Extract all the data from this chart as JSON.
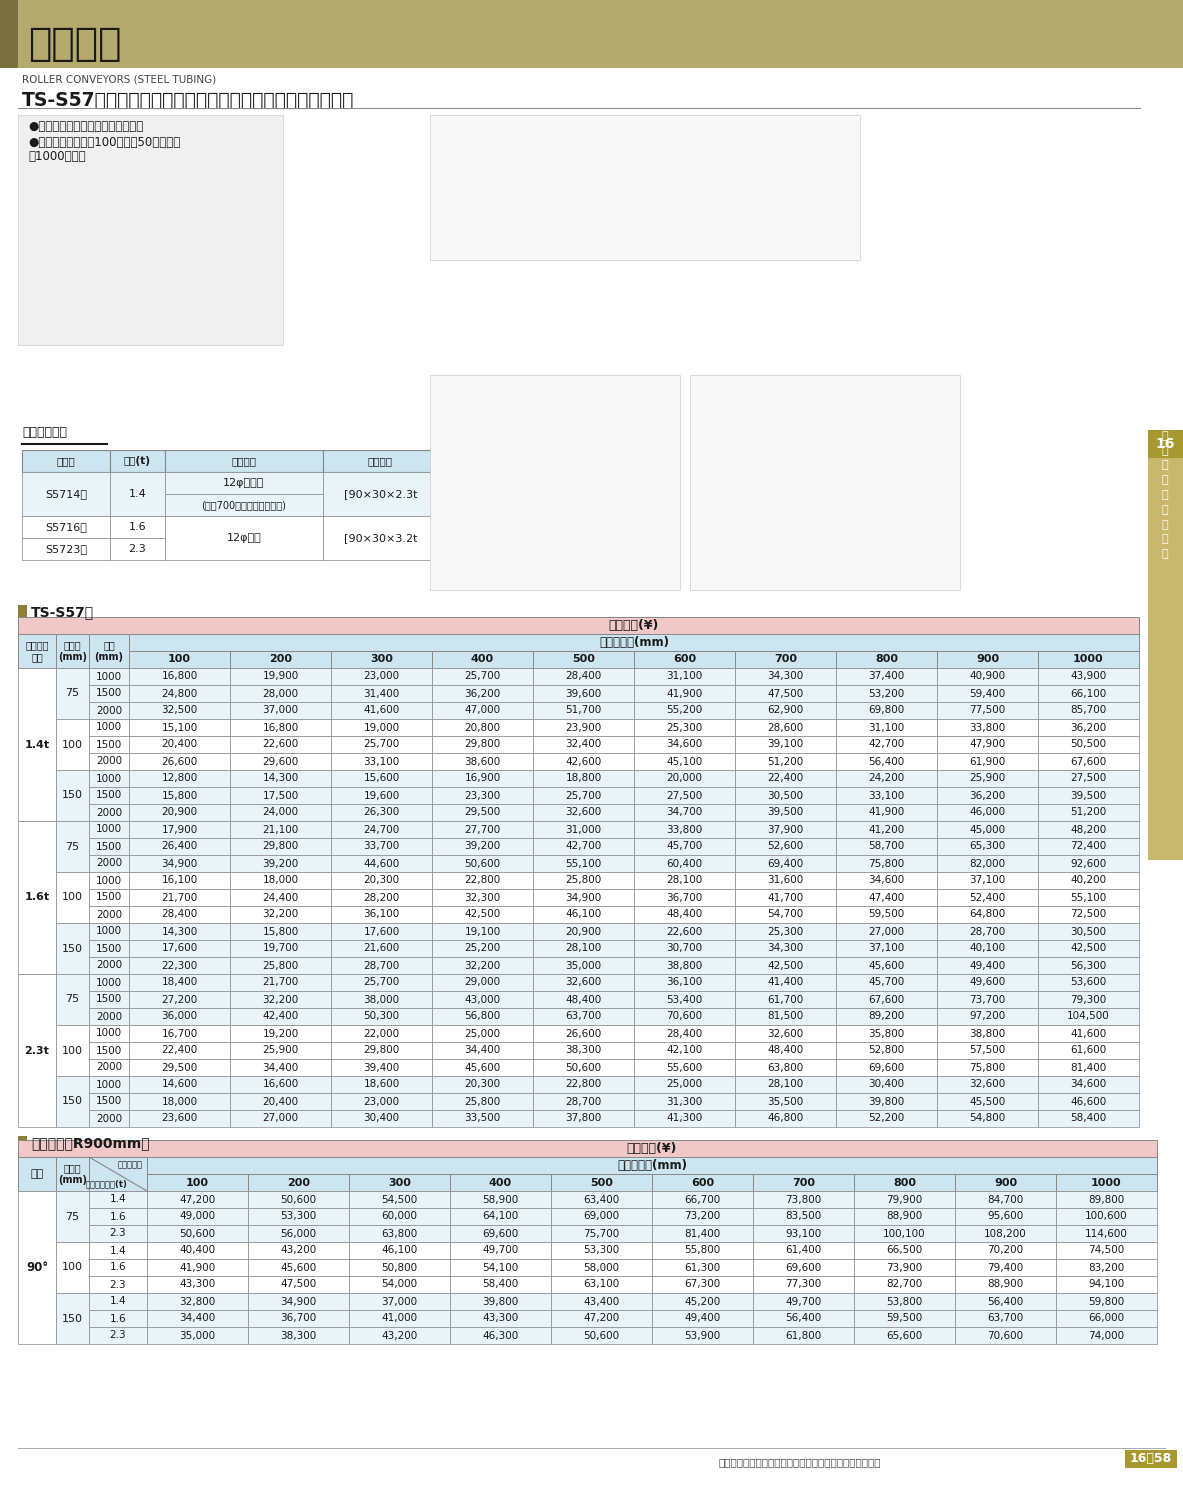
{
  "page_title": "コンベヤ",
  "page_subtitle_en": "ROLLER CONVEYORS (STEEL TUBING)",
  "page_subtitle_jp": "TS-S57型ローラーコンベヤ（スチール製）［寺内製作所］",
  "bullet_points": [
    "●汎用性に富んだ標準タイプです。",
    "●標準ローラー巾は100㎜から50㎜とびに",
    "　1000㎜まで"
  ],
  "roller_thickness_title": "ローラー肉厚",
  "roller_thickness_headers": [
    "型　番",
    "肉厚(t)",
    "シャフト",
    "フレーム"
  ],
  "ts_s57_title": "TS-S57型",
  "ts_s57_header_merged": "ローラー巾\n(mm)",
  "ts_s57_header_price": "標準価格(¥)",
  "price_cols": [
    "100",
    "200",
    "300",
    "400",
    "500",
    "600",
    "700",
    "800",
    "900",
    "1000"
  ],
  "ts_s57_data": [
    [
      "1.4t",
      "75",
      "1000",
      "16,800",
      "19,900",
      "23,000",
      "25,700",
      "28,400",
      "31,100",
      "34,300",
      "37,400",
      "40,900",
      "43,900"
    ],
    [
      "",
      "",
      "1500",
      "24,800",
      "28,000",
      "31,400",
      "36,200",
      "39,600",
      "41,900",
      "47,500",
      "53,200",
      "59,400",
      "66,100"
    ],
    [
      "",
      "",
      "2000",
      "32,500",
      "37,000",
      "41,600",
      "47,000",
      "51,700",
      "55,200",
      "62,900",
      "69,800",
      "77,500",
      "85,700"
    ],
    [
      "",
      "100",
      "1000",
      "15,100",
      "16,800",
      "19,000",
      "20,800",
      "23,900",
      "25,300",
      "28,600",
      "31,100",
      "33,800",
      "36,200"
    ],
    [
      "",
      "",
      "1500",
      "20,400",
      "22,600",
      "25,700",
      "29,800",
      "32,400",
      "34,600",
      "39,100",
      "42,700",
      "47,900",
      "50,500"
    ],
    [
      "",
      "",
      "2000",
      "26,600",
      "29,600",
      "33,100",
      "38,600",
      "42,600",
      "45,100",
      "51,200",
      "56,400",
      "61,900",
      "67,600"
    ],
    [
      "",
      "150",
      "1000",
      "12,800",
      "14,300",
      "15,600",
      "16,900",
      "18,800",
      "20,000",
      "22,400",
      "24,200",
      "25,900",
      "27,500"
    ],
    [
      "",
      "",
      "1500",
      "15,800",
      "17,500",
      "19,600",
      "23,300",
      "25,700",
      "27,500",
      "30,500",
      "33,100",
      "36,200",
      "39,500"
    ],
    [
      "",
      "",
      "2000",
      "20,900",
      "24,000",
      "26,300",
      "29,500",
      "32,600",
      "34,700",
      "39,500",
      "41,900",
      "46,000",
      "51,200"
    ],
    [
      "1.6t",
      "75",
      "1000",
      "17,900",
      "21,100",
      "24,700",
      "27,700",
      "31,000",
      "33,800",
      "37,900",
      "41,200",
      "45,000",
      "48,200"
    ],
    [
      "",
      "",
      "1500",
      "26,400",
      "29,800",
      "33,700",
      "39,200",
      "42,700",
      "45,700",
      "52,600",
      "58,700",
      "65,300",
      "72,400"
    ],
    [
      "",
      "",
      "2000",
      "34,900",
      "39,200",
      "44,600",
      "50,600",
      "55,100",
      "60,400",
      "69,400",
      "75,800",
      "82,000",
      "92,600"
    ],
    [
      "",
      "100",
      "1000",
      "16,100",
      "18,000",
      "20,300",
      "22,800",
      "25,800",
      "28,100",
      "31,600",
      "34,600",
      "37,100",
      "40,200"
    ],
    [
      "",
      "",
      "1500",
      "21,700",
      "24,400",
      "28,200",
      "32,300",
      "34,900",
      "36,700",
      "41,700",
      "47,400",
      "52,400",
      "55,100"
    ],
    [
      "",
      "",
      "2000",
      "28,400",
      "32,200",
      "36,100",
      "42,500",
      "46,100",
      "48,400",
      "54,700",
      "59,500",
      "64,800",
      "72,500"
    ],
    [
      "",
      "150",
      "1000",
      "14,300",
      "15,800",
      "17,600",
      "19,100",
      "20,900",
      "22,600",
      "25,300",
      "27,000",
      "28,700",
      "30,500"
    ],
    [
      "",
      "",
      "1500",
      "17,600",
      "19,700",
      "21,600",
      "25,200",
      "28,100",
      "30,700",
      "34,300",
      "37,100",
      "40,100",
      "42,500"
    ],
    [
      "",
      "",
      "2000",
      "22,300",
      "25,800",
      "28,700",
      "32,200",
      "35,000",
      "38,800",
      "42,500",
      "45,600",
      "49,400",
      "56,300"
    ],
    [
      "2.3t",
      "75",
      "1000",
      "18,400",
      "21,700",
      "25,700",
      "29,000",
      "32,600",
      "36,100",
      "41,400",
      "45,700",
      "49,600",
      "53,600"
    ],
    [
      "",
      "",
      "1500",
      "27,200",
      "32,200",
      "38,000",
      "43,000",
      "48,400",
      "53,400",
      "61,700",
      "67,600",
      "73,700",
      "79,300"
    ],
    [
      "",
      "",
      "2000",
      "36,000",
      "42,400",
      "50,300",
      "56,800",
      "63,700",
      "70,600",
      "81,500",
      "89,200",
      "97,200",
      "104,500"
    ],
    [
      "",
      "100",
      "1000",
      "16,700",
      "19,200",
      "22,000",
      "25,000",
      "26,600",
      "28,400",
      "32,600",
      "35,800",
      "38,800",
      "41,600"
    ],
    [
      "",
      "",
      "1500",
      "22,400",
      "25,900",
      "29,800",
      "34,400",
      "38,300",
      "42,100",
      "48,400",
      "52,800",
      "57,500",
      "61,600"
    ],
    [
      "",
      "",
      "2000",
      "29,500",
      "34,400",
      "39,400",
      "45,600",
      "50,600",
      "55,600",
      "63,800",
      "69,600",
      "75,800",
      "81,400"
    ],
    [
      "",
      "150",
      "1000",
      "14,600",
      "16,600",
      "18,600",
      "20,300",
      "22,800",
      "25,000",
      "28,100",
      "30,400",
      "32,600",
      "34,600"
    ],
    [
      "",
      "",
      "1500",
      "18,000",
      "20,400",
      "23,000",
      "25,800",
      "28,700",
      "31,300",
      "35,500",
      "39,800",
      "45,500",
      "46,600"
    ],
    [
      "",
      "",
      "2000",
      "23,600",
      "27,000",
      "30,400",
      "33,500",
      "37,800",
      "41,300",
      "46,800",
      "52,200",
      "54,800",
      "58,400"
    ]
  ],
  "curve_title": "カーブ（内R900mm）",
  "curve_data": [
    [
      "90°",
      "75",
      "1.4",
      "47,200",
      "50,600",
      "54,500",
      "58,900",
      "63,400",
      "66,700",
      "73,800",
      "79,900",
      "84,700",
      "89,800"
    ],
    [
      "",
      "",
      "1.6",
      "49,000",
      "53,300",
      "60,000",
      "64,100",
      "69,000",
      "73,200",
      "83,500",
      "88,900",
      "95,600",
      "100,600"
    ],
    [
      "",
      "",
      "2.3",
      "50,600",
      "56,000",
      "63,800",
      "69,600",
      "75,700",
      "81,400",
      "93,100",
      "100,100",
      "108,200",
      "114,600"
    ],
    [
      "",
      "100",
      "1.4",
      "40,400",
      "43,200",
      "46,100",
      "49,700",
      "53,300",
      "55,800",
      "61,400",
      "66,500",
      "70,200",
      "74,500"
    ],
    [
      "",
      "",
      "1.6",
      "41,900",
      "45,600",
      "50,800",
      "54,100",
      "58,000",
      "61,300",
      "69,600",
      "73,900",
      "79,400",
      "83,200"
    ],
    [
      "",
      "",
      "2.3",
      "43,300",
      "47,500",
      "54,000",
      "58,400",
      "63,100",
      "67,300",
      "77,300",
      "82,700",
      "88,900",
      "94,100"
    ],
    [
      "",
      "150",
      "1.4",
      "32,800",
      "34,900",
      "37,000",
      "39,800",
      "43,400",
      "45,200",
      "49,700",
      "53,800",
      "56,400",
      "59,800"
    ],
    [
      "",
      "",
      "1.6",
      "34,400",
      "36,700",
      "41,000",
      "43,300",
      "47,200",
      "49,400",
      "56,400",
      "59,500",
      "63,700",
      "66,000"
    ],
    [
      "",
      "",
      "2.3",
      "35,000",
      "38,300",
      "43,200",
      "46,300",
      "50,600",
      "53,900",
      "61,800",
      "65,600",
      "70,600",
      "74,000"
    ]
  ],
  "footer_note": "表示価格はすべて税抜きです。別途消費税がかかります。",
  "page_number": "16－58",
  "header_bg_color": "#b5aa6e",
  "header_dark_color": "#7a7040",
  "table_header_blue": "#cce5f0",
  "table_header_pink": "#f0c8c8",
  "table_row_a": "#e8f4f8",
  "table_row_b": "#ffffff",
  "section_square_color": "#8b7d3a",
  "border_color": "#888888",
  "side_tab_color": "#c8b86e",
  "side_tab_dark": "#a89830"
}
